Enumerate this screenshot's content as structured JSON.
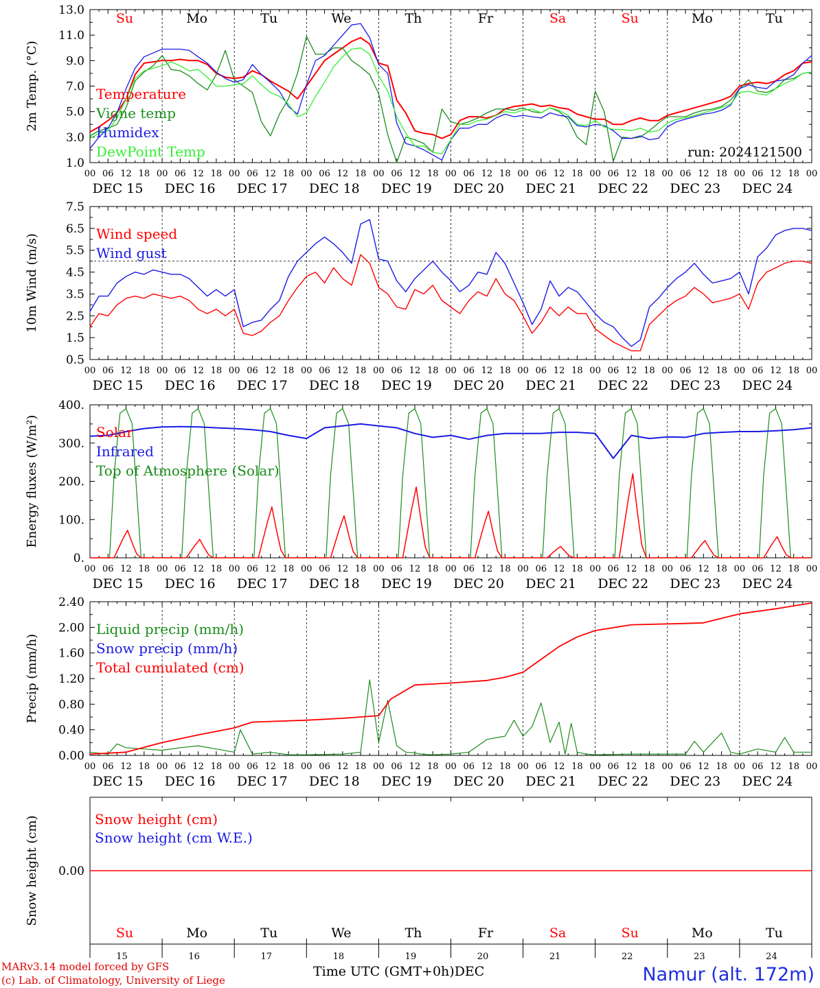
{
  "colors": {
    "red": "#ff0000",
    "green": "#1a8c1a",
    "blue": "#1a1ae6",
    "lightgreen": "#33ee33",
    "axis": "#000000",
    "weekend": "#ff0000"
  },
  "days": [
    "Su",
    "Mo",
    "Tu",
    "We",
    "Th",
    "Fr",
    "Sa",
    "Su",
    "Mo",
    "Tu"
  ],
  "day_colors": [
    "red",
    "axis",
    "axis",
    "axis",
    "axis",
    "axis",
    "red",
    "red",
    "axis",
    "axis"
  ],
  "date_labels": [
    "DEC 15",
    "DEC 16",
    "DEC 17",
    "DEC 18",
    "DEC 19",
    "DEC 20",
    "DEC 21",
    "DEC 22",
    "DEC 23",
    "DEC 24"
  ],
  "hour_ticks": [
    "00",
    "06",
    "12",
    "18"
  ],
  "hour_end": "00",
  "bottom_day_numbers": [
    "15",
    "16",
    "17",
    "18",
    "19",
    "20",
    "21",
    "22",
    "23",
    "24"
  ],
  "footer": {
    "model_line": "MARv3.14 model forced by GFS",
    "lab_line": "(c) Lab. of Climatology, University of Liege",
    "axis_title": "Time UTC (GMT+0h)",
    "month": "DEC",
    "station": "Namur (alt. 172m)"
  },
  "chart_data": [
    {
      "type": "line",
      "id": "temperature",
      "ylabel": "2m Temp. (°C)",
      "ylim": [
        1.0,
        13.0
      ],
      "yticks": [
        "1.0",
        "3.0",
        "5.0",
        "7.0",
        "9.0",
        "11.0",
        "13.0"
      ],
      "x_hours": [
        0,
        3,
        6,
        9,
        12,
        15,
        18,
        21,
        24,
        27,
        30,
        33,
        36,
        39,
        42,
        45,
        48,
        51,
        54,
        57,
        60,
        63,
        66,
        69,
        72,
        75,
        78,
        81,
        84,
        87,
        90,
        93,
        96,
        99,
        102,
        105,
        108,
        111,
        114,
        117,
        120,
        123,
        126,
        129,
        132,
        135,
        138,
        141,
        144,
        147,
        150,
        153,
        156,
        159,
        162,
        165,
        168,
        171,
        174,
        177,
        180,
        183,
        186,
        189,
        192,
        195,
        198,
        201,
        204,
        207,
        210,
        213,
        216,
        219,
        222,
        225,
        228,
        231,
        234,
        237,
        240
      ],
      "annotation": "run: 2024121500",
      "series": [
        {
          "name": "Temperature",
          "color": "red",
          "values": [
            3.4,
            3.8,
            4.3,
            4.9,
            6.0,
            7.9,
            8.8,
            8.9,
            9.0,
            9.0,
            9.1,
            9.0,
            9.0,
            8.7,
            8.0,
            7.7,
            7.6,
            7.7,
            8.2,
            7.9,
            7.4,
            7.0,
            6.6,
            6.0,
            7.0,
            8.0,
            9.0,
            9.5,
            10.0,
            10.5,
            10.8,
            10.3,
            8.8,
            8.6,
            5.9,
            4.9,
            3.5,
            3.3,
            3.2,
            2.9,
            3.2,
            4.3,
            4.6,
            4.6,
            4.5,
            4.7,
            5.2,
            5.4,
            5.5,
            5.6,
            5.4,
            5.5,
            5.3,
            5.2,
            4.8,
            4.6,
            4.4,
            4.4,
            4.0,
            4.0,
            4.3,
            4.5,
            4.3,
            4.3,
            4.7,
            4.9,
            5.1,
            5.3,
            5.5,
            5.7,
            5.9,
            6.2,
            7.0,
            7.2,
            7.3,
            7.2,
            7.4,
            7.9,
            8.2,
            8.8,
            8.9
          ]
        },
        {
          "name": "Vigne temp",
          "color": "green",
          "values": [
            3.1,
            3.5,
            3.7,
            4.0,
            5.3,
            7.4,
            8.1,
            8.6,
            9.4,
            8.3,
            8.2,
            7.8,
            7.2,
            6.7,
            7.9,
            9.8,
            7.5,
            7.0,
            6.5,
            4.2,
            3.1,
            4.8,
            6.0,
            8.0,
            10.9,
            9.5,
            9.5,
            10.0,
            10.0,
            9.0,
            8.5,
            7.9,
            6.4,
            3.2,
            1.0,
            3.0,
            2.8,
            2.5,
            1.8,
            5.2,
            4.2,
            4.0,
            4.2,
            4.5,
            4.9,
            5.2,
            5.2,
            5.1,
            5.3,
            5.0,
            4.9,
            5.3,
            5.0,
            4.4,
            3.0,
            2.4,
            6.6,
            5.0,
            1.1,
            3.0,
            2.9,
            3.0,
            3.5,
            4.1,
            4.6,
            4.6,
            4.6,
            4.9,
            5.1,
            5.2,
            5.4,
            5.9,
            6.8,
            7.5,
            6.6,
            6.5,
            6.8,
            7.5,
            7.6,
            8.0,
            8.1
          ]
        },
        {
          "name": "Humidex",
          "color": "blue",
          "values": [
            2.1,
            3.0,
            3.7,
            4.9,
            6.8,
            8.4,
            9.3,
            9.6,
            9.9,
            9.9,
            9.9,
            9.8,
            9.3,
            8.8,
            8.1,
            7.6,
            7.3,
            7.5,
            8.7,
            7.9,
            7.3,
            6.6,
            5.4,
            4.8,
            7.1,
            9.0,
            9.4,
            10.2,
            11.0,
            11.8,
            11.9,
            10.8,
            8.7,
            8.0,
            4.1,
            2.5,
            2.3,
            2.0,
            1.6,
            1.2,
            2.8,
            3.7,
            3.7,
            4.0,
            4.0,
            4.5,
            4.8,
            4.6,
            4.7,
            4.6,
            4.5,
            4.9,
            4.7,
            4.6,
            3.9,
            3.8,
            4.0,
            3.9,
            3.5,
            2.9,
            2.9,
            3.1,
            2.8,
            2.9,
            3.8,
            4.2,
            4.4,
            4.6,
            4.8,
            4.9,
            5.1,
            5.5,
            6.8,
            7.1,
            6.9,
            6.8,
            7.4,
            7.5,
            7.9,
            8.8,
            9.4
          ]
        },
        {
          "name": "DewPoint Temp",
          "color": "lightgreen",
          "values": [
            2.9,
            3.3,
            3.5,
            4.5,
            6.0,
            7.6,
            8.2,
            8.4,
            8.6,
            8.9,
            8.6,
            8.2,
            8.3,
            7.7,
            7.0,
            7.0,
            7.1,
            7.2,
            7.8,
            7.1,
            6.5,
            6.2,
            5.6,
            4.6,
            4.9,
            6.2,
            7.3,
            8.5,
            9.3,
            9.9,
            10.0,
            9.5,
            7.8,
            6.6,
            4.6,
            3.3,
            2.3,
            2.3,
            1.8,
            1.7,
            2.8,
            4.0,
            4.0,
            4.3,
            4.4,
            4.7,
            5.0,
            4.9,
            5.1,
            5.2,
            4.9,
            5.3,
            5.1,
            4.7,
            4.0,
            3.9,
            4.3,
            3.8,
            3.6,
            3.6,
            3.5,
            3.7,
            3.4,
            3.5,
            4.1,
            4.4,
            4.5,
            4.7,
            4.9,
            5.1,
            5.3,
            5.6,
            6.5,
            6.6,
            6.4,
            6.3,
            6.8,
            7.2,
            7.5,
            8.0,
            8.1
          ]
        }
      ]
    },
    {
      "type": "line",
      "id": "wind",
      "ylabel": "10m Wind (m/s)",
      "ylim": [
        0.5,
        7.5
      ],
      "yticks": [
        "0.5",
        "1.5",
        "2.5",
        "3.5",
        "4.5",
        "5.5",
        "6.5",
        "7.5"
      ],
      "reference_line": 5.0,
      "x_hours": [
        0,
        3,
        6,
        9,
        12,
        15,
        18,
        21,
        24,
        27,
        30,
        33,
        36,
        39,
        42,
        45,
        48,
        51,
        54,
        57,
        60,
        63,
        66,
        69,
        72,
        75,
        78,
        81,
        84,
        87,
        90,
        93,
        96,
        99,
        102,
        105,
        108,
        111,
        114,
        117,
        120,
        123,
        126,
        129,
        132,
        135,
        138,
        141,
        144,
        147,
        150,
        153,
        156,
        159,
        162,
        165,
        168,
        171,
        174,
        177,
        180,
        183,
        186,
        189,
        192,
        195,
        198,
        201,
        204,
        207,
        210,
        213,
        216,
        219,
        222,
        225,
        228,
        231,
        234,
        237,
        240
      ],
      "series": [
        {
          "name": "Wind speed",
          "color": "red",
          "values": [
            2.0,
            2.6,
            2.5,
            3.0,
            3.3,
            3.4,
            3.3,
            3.5,
            3.4,
            3.3,
            3.4,
            3.2,
            2.8,
            2.6,
            2.8,
            2.5,
            2.8,
            1.7,
            1.6,
            1.8,
            2.2,
            2.5,
            3.2,
            3.8,
            4.3,
            4.5,
            4.0,
            4.7,
            4.2,
            3.9,
            5.3,
            4.9,
            3.8,
            3.5,
            2.9,
            2.8,
            3.7,
            3.5,
            3.9,
            3.2,
            2.9,
            2.6,
            3.2,
            3.6,
            3.4,
            4.2,
            3.5,
            3.2,
            2.5,
            1.7,
            2.2,
            2.9,
            2.5,
            2.9,
            2.6,
            2.6,
            1.9,
            1.6,
            1.3,
            1.1,
            0.9,
            0.9,
            2.1,
            2.5,
            2.9,
            3.2,
            3.4,
            3.8,
            3.5,
            3.1,
            3.2,
            3.3,
            3.5,
            2.8,
            4.0,
            4.5,
            4.7,
            4.9,
            5.0,
            5.0,
            4.9
          ]
        },
        {
          "name": "Wind gust",
          "color": "blue",
          "values": [
            2.7,
            3.4,
            3.4,
            4.0,
            4.3,
            4.5,
            4.4,
            4.6,
            4.5,
            4.4,
            4.4,
            4.2,
            3.8,
            3.4,
            3.7,
            3.4,
            3.7,
            2.0,
            2.2,
            2.3,
            2.8,
            3.2,
            4.3,
            5.0,
            5.4,
            5.8,
            6.1,
            5.8,
            5.4,
            4.9,
            6.7,
            6.9,
            5.1,
            5.0,
            4.1,
            3.6,
            4.2,
            4.6,
            5.0,
            4.5,
            4.1,
            3.6,
            3.9,
            4.5,
            4.4,
            5.4,
            4.9,
            4.0,
            3.1,
            2.1,
            2.8,
            4.1,
            3.4,
            3.8,
            3.6,
            3.1,
            2.6,
            2.2,
            2.0,
            1.5,
            1.1,
            1.4,
            2.9,
            3.3,
            3.8,
            4.2,
            4.5,
            4.9,
            4.4,
            4.0,
            4.1,
            4.2,
            4.5,
            3.5,
            5.2,
            5.6,
            6.2,
            6.4,
            6.5,
            6.5,
            6.4
          ]
        }
      ]
    },
    {
      "type": "line",
      "id": "energy",
      "ylabel": "Energy fluxes (W/m²)",
      "ylim": [
        0,
        400
      ],
      "yticks": [
        "0.",
        "100.",
        "200.",
        "300.",
        "400."
      ],
      "series": [
        {
          "name": "Solar",
          "color": "red",
          "daily_peaks": [
            72,
            48,
            133,
            110,
            185,
            122,
            30,
            220,
            45,
            55
          ]
        },
        {
          "name": "Infrared",
          "color": "blue",
          "x_hours": [
            0,
            6,
            12,
            18,
            24,
            30,
            36,
            42,
            48,
            54,
            60,
            66,
            72,
            78,
            84,
            90,
            96,
            102,
            108,
            114,
            120,
            126,
            132,
            138,
            144,
            150,
            156,
            162,
            168,
            174,
            180,
            186,
            192,
            198,
            204,
            210,
            216,
            222,
            228,
            234,
            240
          ],
          "values": [
            318,
            320,
            330,
            338,
            342,
            343,
            342,
            340,
            338,
            335,
            330,
            320,
            312,
            340,
            345,
            350,
            345,
            340,
            325,
            315,
            320,
            310,
            320,
            325,
            325,
            325,
            328,
            328,
            325,
            260,
            320,
            312,
            316,
            315,
            325,
            328,
            330,
            330,
            332,
            335,
            340
          ]
        },
        {
          "name": "Top of Atmosphere (Solar)",
          "color": "green",
          "daily_peak": 390
        }
      ]
    },
    {
      "type": "line",
      "id": "precip",
      "ylabel": "Precip (mm/h)",
      "ylim": [
        0.0,
        2.4
      ],
      "yticks": [
        "0.00",
        "0.40",
        "0.80",
        "1.20",
        "1.60",
        "2.00",
        "2.40"
      ],
      "series": [
        {
          "name": "Liquid precip (mm/h)",
          "color": "green",
          "x_hours": [
            0,
            6,
            9,
            12,
            18,
            24,
            30,
            36,
            42,
            48,
            50,
            54,
            60,
            66,
            72,
            84,
            90,
            93,
            96,
            99,
            102,
            105,
            108,
            110,
            114,
            120,
            126,
            132,
            138,
            141,
            144,
            147,
            150,
            153,
            156,
            158,
            160,
            162,
            165,
            168,
            180,
            198,
            201,
            204,
            207,
            210,
            213,
            216,
            222,
            228,
            231,
            234,
            240
          ],
          "values": [
            0.05,
            0.02,
            0.18,
            0.12,
            0.1,
            0.08,
            0.12,
            0.15,
            0.1,
            0.05,
            0.4,
            0.02,
            0.05,
            0.01,
            0.01,
            0.02,
            0.05,
            1.18,
            0.2,
            0.86,
            0.15,
            0.05,
            0.04,
            0.02,
            0.01,
            0.02,
            0.05,
            0.25,
            0.3,
            0.55,
            0.3,
            0.45,
            0.82,
            0.2,
            0.52,
            0.02,
            0.5,
            0.05,
            0.02,
            0.01,
            0.02,
            0.02,
            0.22,
            0.05,
            0.2,
            0.35,
            0.05,
            0.02,
            0.1,
            0.05,
            0.28,
            0.05,
            0.05
          ]
        },
        {
          "name": "Snow precip (mm/h)",
          "color": "blue",
          "values": []
        },
        {
          "name": "Total cumulated (cm)",
          "color": "red",
          "x_hours": [
            0,
            12,
            24,
            36,
            48,
            54,
            72,
            84,
            96,
            100,
            108,
            120,
            132,
            138,
            144,
            150,
            156,
            162,
            168,
            180,
            198,
            204,
            216,
            228,
            240
          ],
          "values": [
            0.02,
            0.05,
            0.2,
            0.32,
            0.43,
            0.52,
            0.55,
            0.58,
            0.62,
            0.88,
            1.1,
            1.13,
            1.17,
            1.22,
            1.3,
            1.5,
            1.7,
            1.85,
            1.95,
            2.04,
            2.06,
            2.07,
            2.21,
            2.29,
            2.38
          ]
        }
      ]
    },
    {
      "type": "line",
      "id": "snow",
      "ylabel": "Snow height (cm)",
      "ylim": [
        -1.0,
        1.0
      ],
      "yticks": [
        "0.00"
      ],
      "series": [
        {
          "name": "Snow height (cm)",
          "color": "red",
          "values": [
            0.0,
            0.0
          ]
        },
        {
          "name": "Snow height (cm W.E.)",
          "color": "blue",
          "values": []
        }
      ]
    }
  ]
}
